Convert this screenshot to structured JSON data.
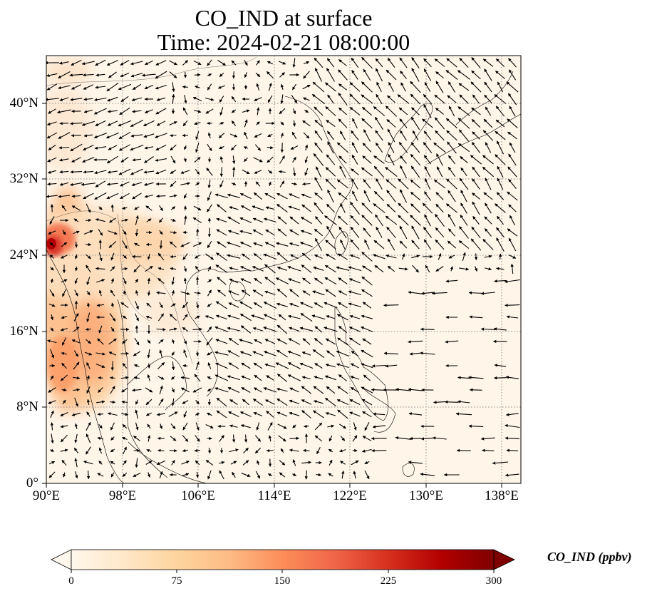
{
  "title": {
    "line1": "CO_IND at surface",
    "line2": "Time: 2024-02-21 08:00:00"
  },
  "map": {
    "lon_range": [
      90,
      140
    ],
    "lat_range": [
      0,
      45
    ],
    "gridlines": "dotted",
    "coastlines": true,
    "wind_vectors": true
  },
  "y_ticks": [
    {
      "value": 0,
      "label": "0°"
    },
    {
      "value": 8,
      "label": "8°N"
    },
    {
      "value": 16,
      "label": "16°N"
    },
    {
      "value": 24,
      "label": "24°N"
    },
    {
      "value": 32,
      "label": "32°N"
    },
    {
      "value": 40,
      "label": "40°N"
    }
  ],
  "x_ticks": [
    {
      "value": 90,
      "label": "90°E"
    },
    {
      "value": 98,
      "label": "98°E"
    },
    {
      "value": 106,
      "label": "106°E"
    },
    {
      "value": 114,
      "label": "114°E"
    },
    {
      "value": 122,
      "label": "122°E"
    },
    {
      "value": 130,
      "label": "130°E"
    },
    {
      "value": 138,
      "label": "138°E"
    }
  ],
  "colorbar": {
    "label": "CO_IND (ppbv)",
    "colormap": "OrRd",
    "range": [
      0,
      300
    ],
    "extend": "both",
    "ticks": [
      {
        "value": 0,
        "label": "0"
      },
      {
        "value": 75,
        "label": "75"
      },
      {
        "value": 150,
        "label": "150"
      },
      {
        "value": 225,
        "label": "225"
      },
      {
        "value": 300,
        "label": "300"
      }
    ],
    "colors": [
      "#fff7ec",
      "#fee8c8",
      "#fdd49e",
      "#fdbb84",
      "#fc8d59",
      "#ef6548",
      "#d7301f",
      "#b30000",
      "#7f0000"
    ]
  }
}
